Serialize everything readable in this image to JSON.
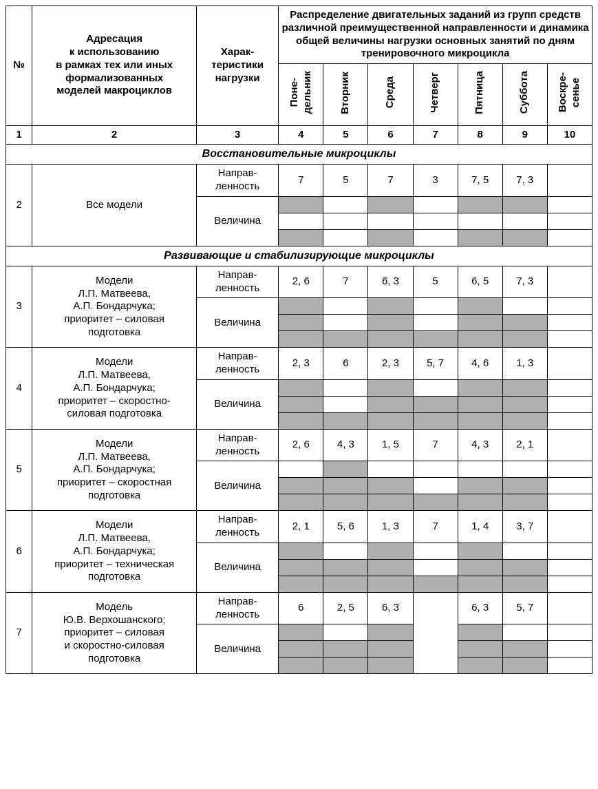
{
  "shaded_color": "#b0b0b0",
  "headers": {
    "num": "№",
    "addressing": "Адресация\nк использованию\nв рамках тех или иных\nформализованных\nмоделей макроциклов",
    "characteristics": "Харак-\nтеристики\nнагрузки",
    "distribution": "Распределение двигательных заданий из групп средств различной преимущественной направленности и динамика общей величины нагрузки основных занятий по дням тренировочного микроцикла",
    "days": [
      "Поне-\nдельник",
      "Вторник",
      "Среда",
      "Четверг",
      "Пятница",
      "Суббота",
      "Воскре-\nсенье"
    ],
    "colnums": [
      "1",
      "2",
      "3",
      "4",
      "5",
      "6",
      "7",
      "8",
      "9",
      "10"
    ]
  },
  "labels": {
    "napravl": "Направ-\nленность",
    "velich": "Величина"
  },
  "sections": [
    {
      "title": "Восстановительные микроциклы"
    },
    {
      "title": "Развивающие и стабилизирующие микроциклы"
    }
  ],
  "rows": [
    {
      "num": "2",
      "section": 0,
      "addr": "Все модели",
      "napravl": [
        "7",
        "5",
        "7",
        "3",
        "7, 5",
        "7, 3",
        ""
      ],
      "mag": [
        [
          1,
          0,
          1,
          0,
          1,
          1,
          0
        ],
        [
          0,
          0,
          0,
          0,
          0,
          0,
          0
        ],
        [
          1,
          0,
          1,
          0,
          1,
          1,
          0
        ]
      ]
    },
    {
      "num": "3",
      "section": 1,
      "addr": "Модели\nЛ.П. Матвеева,\nА.П. Бондарчука;\nприоритет – силовая\nподготовка",
      "napravl": [
        "2, 6",
        "7",
        "6, 3",
        "5",
        "6, 5",
        "7, 3",
        ""
      ],
      "mag": [
        [
          1,
          0,
          1,
          0,
          1,
          0,
          0
        ],
        [
          1,
          0,
          1,
          0,
          1,
          1,
          0
        ],
        [
          1,
          1,
          1,
          1,
          1,
          1,
          0
        ]
      ]
    },
    {
      "num": "4",
      "section": 1,
      "addr": "Модели\nЛ.П. Матвеева,\nА.П. Бондарчука;\nприоритет – скоростно-\nсиловая подготовка",
      "napravl": [
        "2, 3",
        "6",
        "2, 3",
        "5, 7",
        "4, 6",
        "1, 3",
        ""
      ],
      "mag": [
        [
          1,
          0,
          1,
          0,
          1,
          1,
          0
        ],
        [
          1,
          0,
          1,
          1,
          1,
          1,
          0
        ],
        [
          1,
          1,
          1,
          1,
          1,
          1,
          0
        ]
      ]
    },
    {
      "num": "5",
      "section": 1,
      "addr": "Модели\nЛ.П. Матвеева,\nА.П. Бондарчука;\nприоритет – скоростная\nподготовка",
      "napravl": [
        "2, 6",
        "4, 3",
        "1, 5",
        "7",
        "4, 3",
        "2, 1",
        ""
      ],
      "mag": [
        [
          0,
          1,
          0,
          0,
          0,
          0,
          0
        ],
        [
          1,
          1,
          1,
          0,
          1,
          1,
          0
        ],
        [
          1,
          1,
          1,
          1,
          1,
          1,
          0
        ]
      ]
    },
    {
      "num": "6",
      "section": 1,
      "addr": "Модели\nЛ.П. Матвеева,\nА.П. Бондарчука;\nприоритет – техническая\nподготовка",
      "napravl": [
        "2, 1",
        "5, 6",
        "1, 3",
        "7",
        "1, 4",
        "3, 7",
        ""
      ],
      "mag": [
        [
          1,
          0,
          1,
          0,
          1,
          0,
          0
        ],
        [
          1,
          1,
          1,
          0,
          1,
          1,
          0
        ],
        [
          1,
          1,
          1,
          1,
          1,
          1,
          0
        ]
      ]
    },
    {
      "num": "7",
      "section": 1,
      "addr": "Модель\nЮ.В. Верхошанского;\nприоритет – силовая\nи скоростно-силовая\nподготовка",
      "napravl": [
        "6",
        "2, 5",
        "6, 3",
        "",
        "6, 3",
        "5, 7",
        ""
      ],
      "mag": [
        [
          1,
          0,
          1,
          0,
          1,
          0,
          0
        ],
        [
          1,
          1,
          1,
          0,
          1,
          1,
          0
        ],
        [
          1,
          1,
          1,
          0,
          1,
          1,
          0
        ]
      ],
      "mergeCol3": true
    }
  ]
}
